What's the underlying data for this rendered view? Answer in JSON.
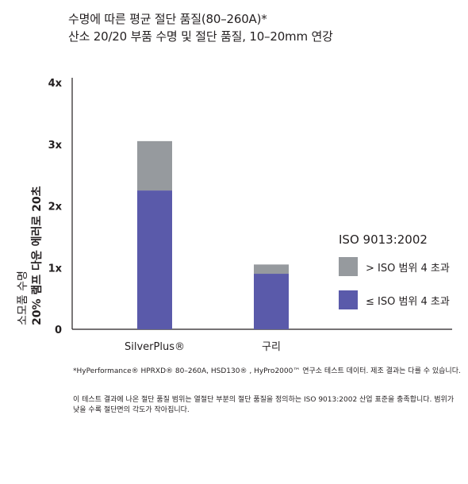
{
  "title_line1": "수명에 따른 평균 절단 품질(80–260A)*",
  "title_line2": "산소 20/20 부품 수명 및 절단 품질, 10–20mm 연강",
  "ylabel_line1": "소모품 수명",
  "ylabel_line2": "20% 램프 다운 에러로 20초",
  "legend_title": "ISO 9013:2002",
  "legend": [
    {
      "label": "> ISO 범위 4 초과",
      "color": "#969a9e"
    },
    {
      "label": "≤ ISO 범위 4 초과",
      "color": "#5a5aaa"
    }
  ],
  "chart_data": {
    "type": "bar",
    "stacked": true,
    "categories": [
      "SilverPlus®",
      "구리"
    ],
    "y_ticks": [
      "0",
      "1x",
      "2x",
      "3x",
      "4x"
    ],
    "ylim": [
      0,
      4
    ],
    "series": [
      {
        "name": "≤ ISO 범위 4 초과",
        "color": "#5a5aaa",
        "values": [
          2.25,
          0.9
        ]
      },
      {
        "name": "> ISO 범위 4 초과",
        "color": "#969a9e",
        "values": [
          0.8,
          0.15
        ]
      }
    ]
  },
  "note1": "*HyPerformance® HPRXD® 80–260A, HSD130® , HyPro2000™ 연구소 테스트 데이터. 제조 결과는 다를 수 있습니다.",
  "note2": "이 테스트 결과에 나온 절단 품질 범위는 열절단 부분의 절단 품질을 정의하는 ISO 9013:2002 산업 표준을 충족합니다. 범위가 낮을 수록 절단면의 각도가 작아집니다."
}
